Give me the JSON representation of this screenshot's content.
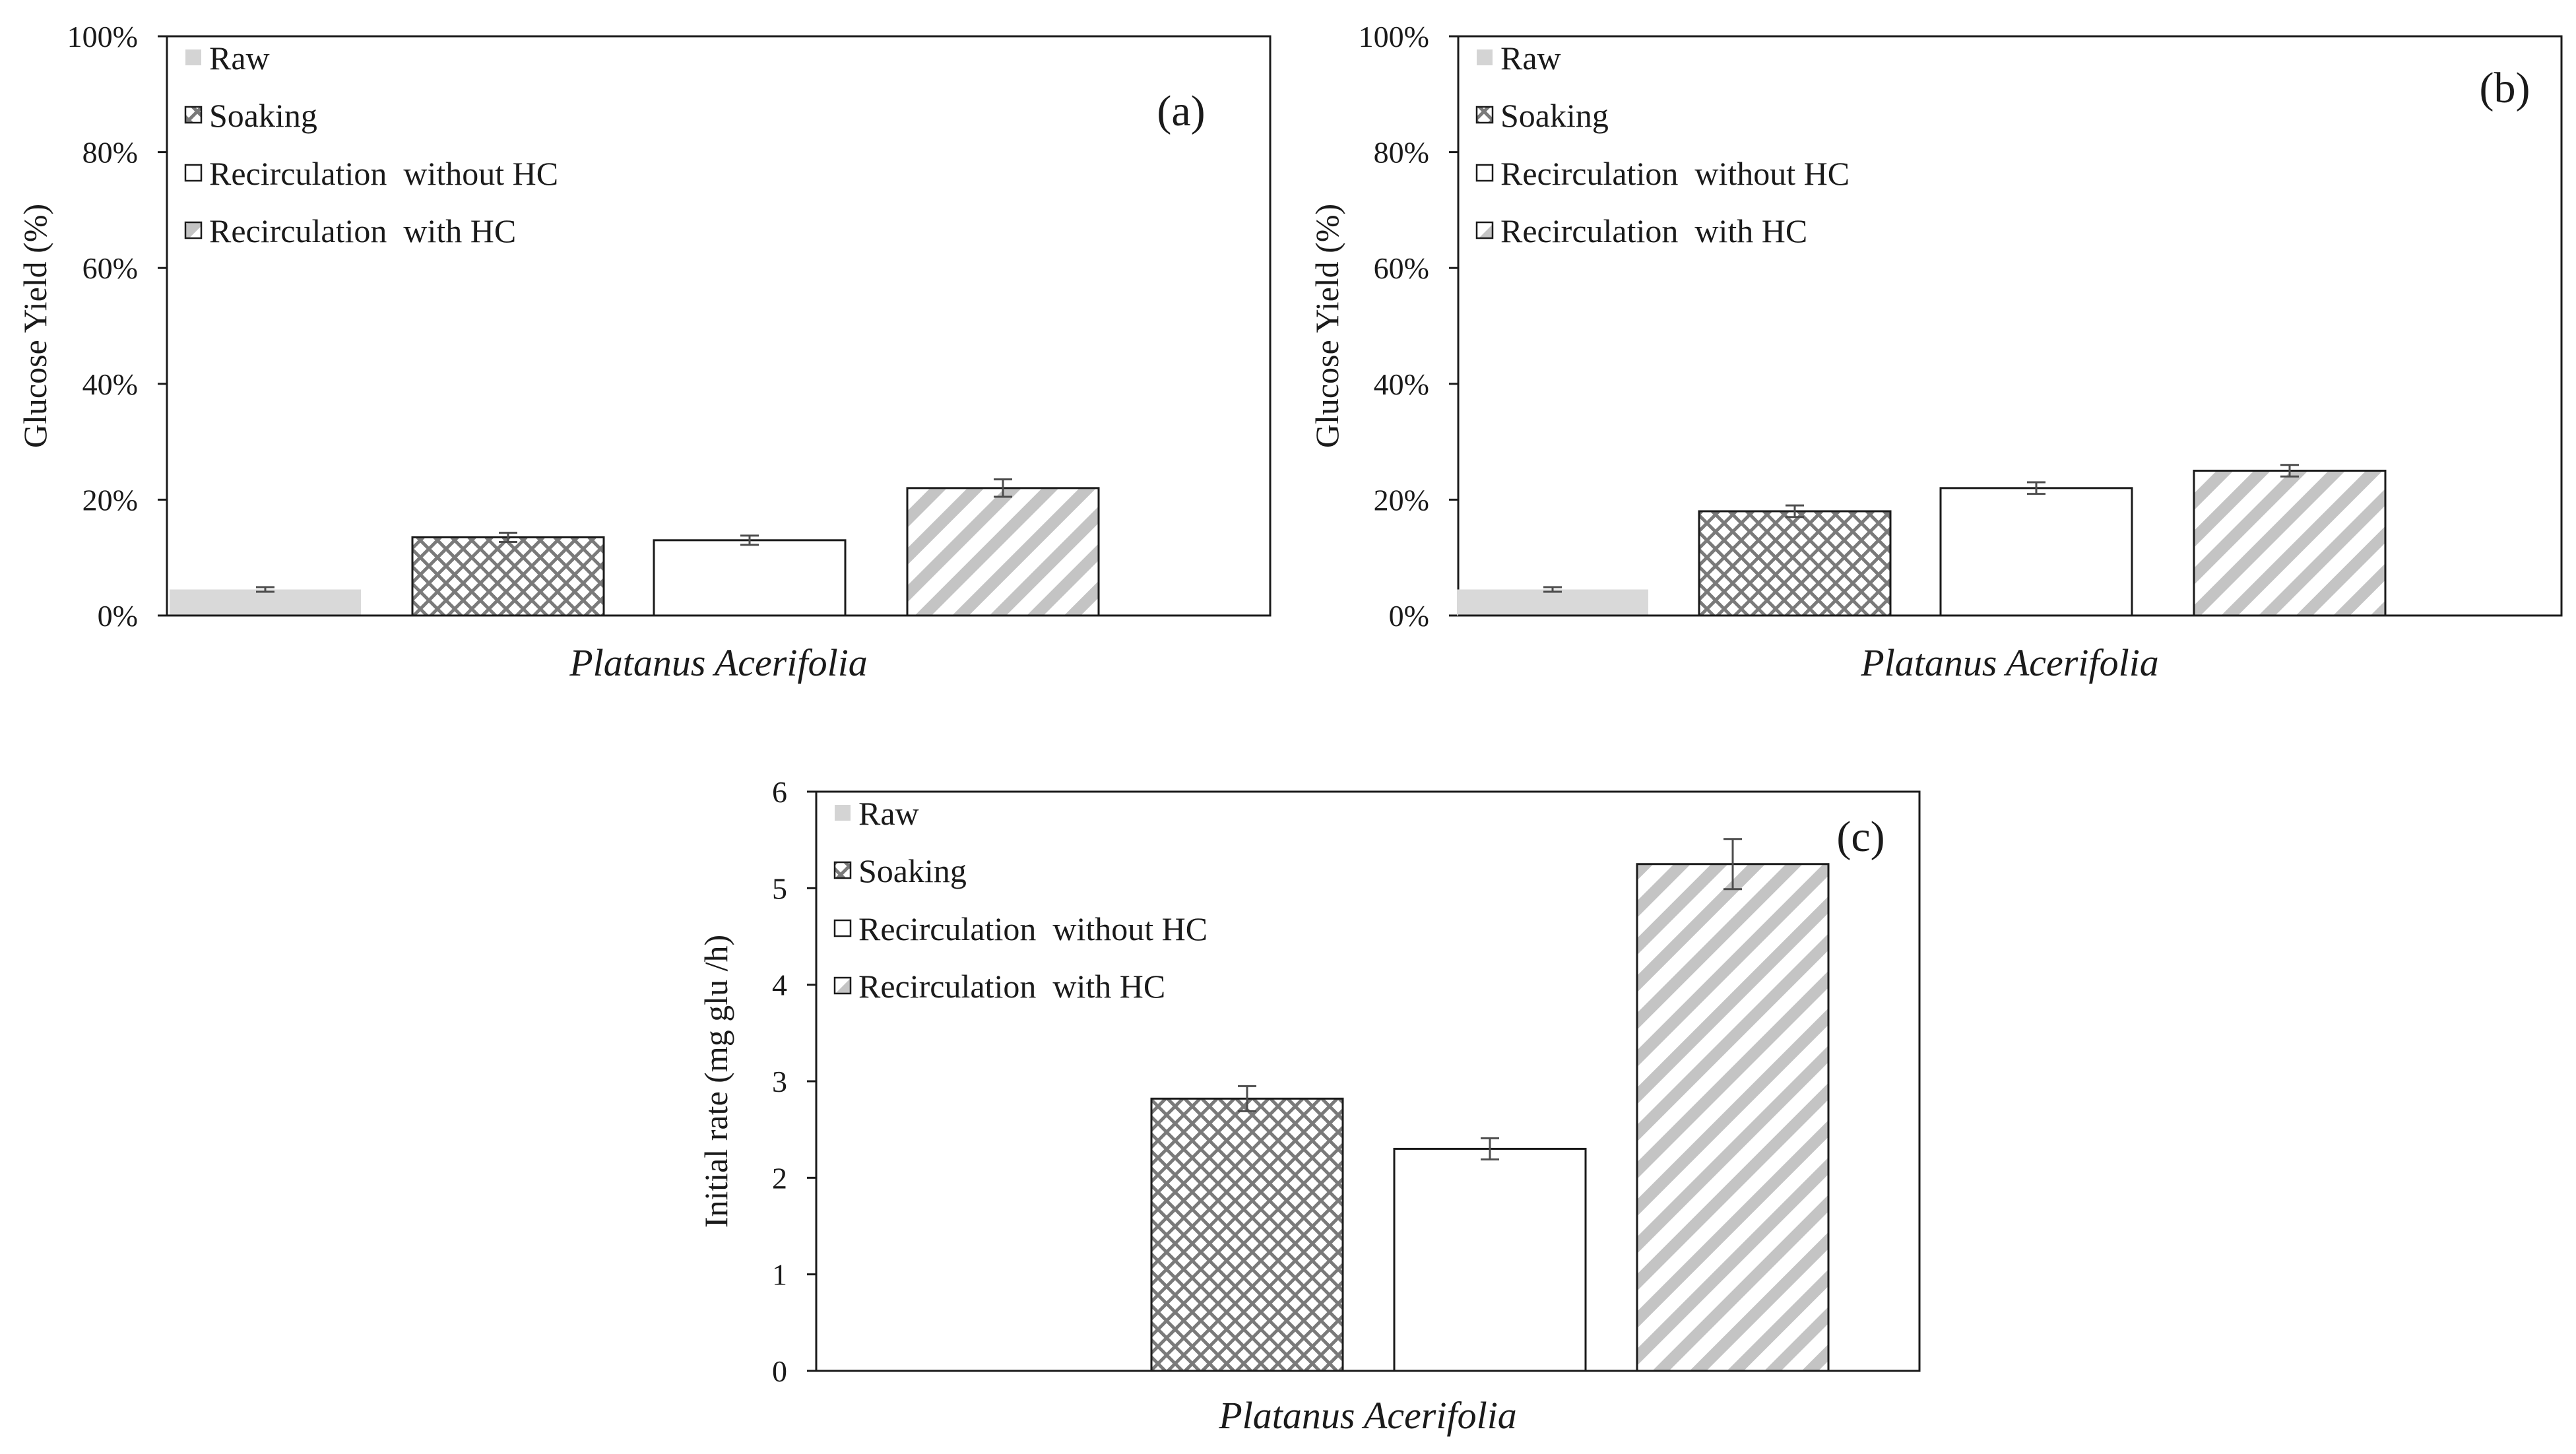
{
  "figure": {
    "panels": [
      "(a)",
      "(b)",
      "(c)"
    ]
  },
  "patterns": {
    "raw": {
      "color": "#d9d9d9",
      "style": "solid"
    },
    "soaking": {
      "color": "#808080",
      "style": "crosshatch"
    },
    "recirc_without_hc": {
      "color": "#ffffff",
      "style": "outline"
    },
    "recirc_with_hc": {
      "color": "#bfbfbf",
      "style": "diagonal-stripes"
    }
  },
  "chart_data": [
    {
      "type": "bar",
      "panel": "(a)",
      "categories": [
        "Raw",
        "Soaking",
        "Recirculation  without HC",
        "Recirculation  with HC"
      ],
      "values": [
        0.045,
        0.135,
        0.13,
        0.22
      ],
      "errors": [
        0.004,
        0.008,
        0.008,
        0.015
      ],
      "xlabel": "Platanus Acerifolia",
      "ylabel": "Glucose Yield   (%)",
      "ylim": [
        0,
        1
      ],
      "yticks": [
        "0%",
        "20%",
        "40%",
        "60%",
        "80%",
        "100%"
      ],
      "yticks_values": [
        0,
        0.2,
        0.4,
        0.6,
        0.8,
        1.0
      ],
      "grid": false,
      "legend": "top-left"
    },
    {
      "type": "bar",
      "panel": "(b)",
      "categories": [
        "Raw",
        "Soaking",
        "Recirculation  without HC",
        "Recirculation  with HC"
      ],
      "values": [
        0.045,
        0.18,
        0.22,
        0.25
      ],
      "errors": [
        0.004,
        0.01,
        0.01,
        0.01
      ],
      "xlabel": "Platanus Acerifolia",
      "ylabel": "Glucose Yield   (%)",
      "ylim": [
        0,
        1
      ],
      "yticks": [
        "0%",
        "20%",
        "40%",
        "60%",
        "80%",
        "100%"
      ],
      "yticks_values": [
        0,
        0.2,
        0.4,
        0.6,
        0.8,
        1.0
      ],
      "grid": false,
      "legend": "top-left"
    },
    {
      "type": "bar",
      "panel": "(c)",
      "categories": [
        "Raw",
        "Soaking",
        "Recirculation  without HC",
        "Recirculation  with HC"
      ],
      "values": [
        0,
        2.82,
        2.3,
        5.25
      ],
      "errors": [
        0,
        0.13,
        0.11,
        0.26
      ],
      "xlabel": "Platanus Acerifolia",
      "ylabel": "Initial rate   (mg glu /h)",
      "ylim": [
        0,
        6
      ],
      "yticks": [
        "0",
        "1",
        "2",
        "3",
        "4",
        "5",
        "6"
      ],
      "yticks_values": [
        0,
        1,
        2,
        3,
        4,
        5,
        6
      ],
      "grid": false,
      "legend": "top-left"
    }
  ]
}
